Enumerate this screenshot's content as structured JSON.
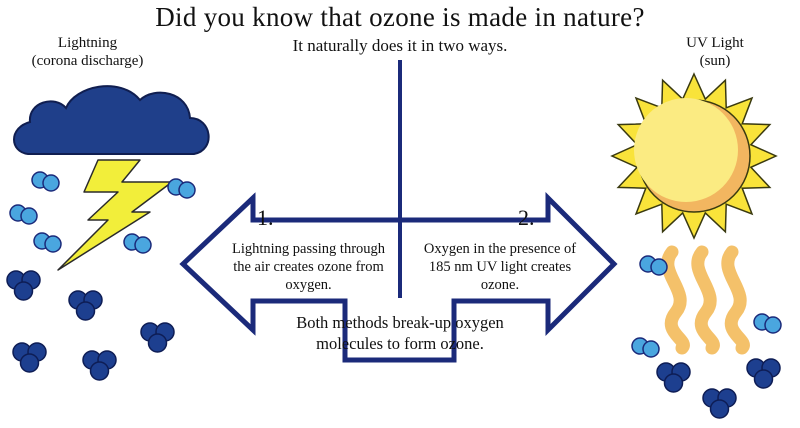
{
  "title": "Did you know that ozone is made in nature?",
  "subtitle": "It  naturally does it in two ways.",
  "left_source": {
    "label_line1": "Lightning",
    "label_line2": "(corona discharge)",
    "icon": "storm-cloud-lightning"
  },
  "right_source": {
    "label_line1": "UV Light",
    "label_line2": "(sun)",
    "icon": "sun-with-heat-waves"
  },
  "methods": [
    {
      "number": "1.",
      "line1": "Lightning passing through",
      "line2": "the air creates ozone from",
      "line3": "oxygen."
    },
    {
      "number": "2.",
      "line1": "Oxygen in the presence of",
      "line2": "185 nm UV light creates",
      "line3": "ozone."
    }
  ],
  "conclusion": {
    "line1": "Both methods break-up oxygen",
    "line2": "molecules to form ozone."
  },
  "colors": {
    "navy": "#1b2a7a",
    "cloud": "#1f3f8a",
    "lightning": "#f2ee3a",
    "sun": "#f9e33a",
    "sun_core": "#fbeb82",
    "sun_shade": "#f2b660",
    "heat_waves": "#f4c16a",
    "oxygen_light": "#4aa6df",
    "ozone_dark": "#1d3f8f"
  }
}
